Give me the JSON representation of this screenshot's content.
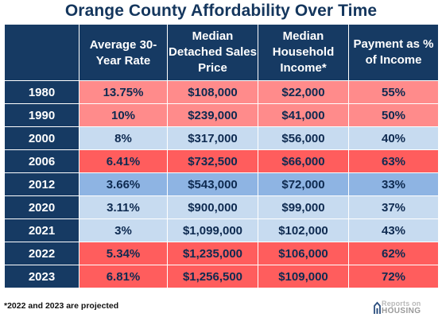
{
  "title": "Orange County Affordability Over Time",
  "headers": [
    "",
    "Average 30-Year Rate",
    "Median Detached Sales Price",
    "Median Household Income*",
    "Payment as % of Income"
  ],
  "rows": [
    {
      "year": "1980",
      "rate": "13.75%",
      "price": "$108,000",
      "income": "$22,000",
      "payment": "55%",
      "color": "pink"
    },
    {
      "year": "1990",
      "rate": "10%",
      "price": "$239,000",
      "income": "$41,000",
      "payment": "50%",
      "color": "pink"
    },
    {
      "year": "2000",
      "rate": "8%",
      "price": "$317,000",
      "income": "$56,000",
      "payment": "40%",
      "color": "lightblue"
    },
    {
      "year": "2006",
      "rate": "6.41%",
      "price": "$732,500",
      "income": "$66,000",
      "payment": "63%",
      "color": "red"
    },
    {
      "year": "2012",
      "rate": "3.66%",
      "price": "$543,000",
      "income": "$72,000",
      "payment": "33%",
      "color": "blue"
    },
    {
      "year": "2020",
      "rate": "3.11%",
      "price": "$900,000",
      "income": "$99,000",
      "payment": "37%",
      "color": "lightblue"
    },
    {
      "year": "2021",
      "rate": "3%",
      "price": "$1,099,000",
      "income": "$102,000",
      "payment": "43%",
      "color": "lightblue"
    },
    {
      "year": "2022",
      "rate": "5.34%",
      "price": "$1,235,000",
      "income": "$106,000",
      "payment": "62%",
      "color": "red"
    },
    {
      "year": "2023",
      "rate": "6.81%",
      "price": "$1,256,500",
      "income": "$109,000",
      "payment": "72%",
      "color": "red"
    }
  ],
  "footnote": "*2022 and 2023 are projected",
  "logo": {
    "line1": "Reports on",
    "line2": "HOUSING",
    "icon": "house-logo-icon"
  },
  "colors": {
    "header_bg": "#163a63",
    "pink": "#ff8b8b",
    "red": "#ff5d5d",
    "lightblue": "#c7dbf0",
    "blue": "#8eb4e3"
  }
}
